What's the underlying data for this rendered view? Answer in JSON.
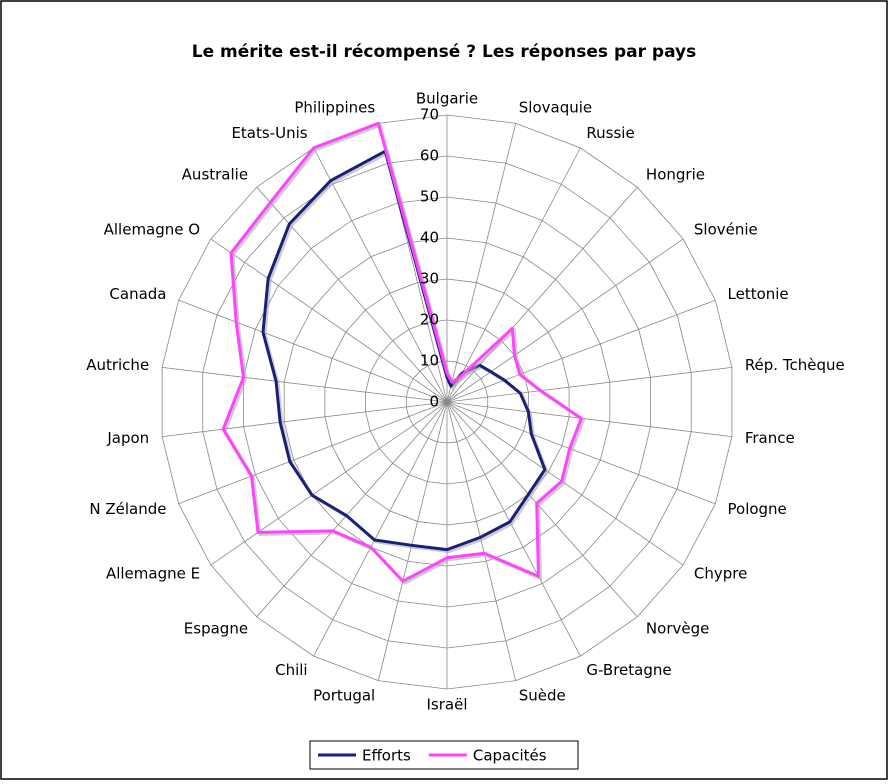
{
  "chart_data": {
    "type": "radar",
    "title": "Le mérite est-il récompensé ? Les réponses par pays",
    "categories": [
      "Bulgarie",
      "Slovaquie",
      "Russie",
      "Hongrie",
      "Slovénie",
      "Lettonie",
      "Rép. Tchèque",
      "France",
      "Pologne",
      "Chypre",
      "Norvège",
      "G-Bretagne",
      "Suède",
      "Israël",
      "Portugal",
      "Chili",
      "Espagne",
      "Allemagne E",
      "N Zélande",
      "Japon",
      "Autriche",
      "Canada",
      "Allemagne O",
      "Australie",
      "Etats-Unis",
      "Philippines"
    ],
    "series": [
      {
        "name": "Efforts",
        "color": "#1a1f7a",
        "values": [
          6,
          4,
          8,
          12,
          13,
          15,
          18,
          20,
          22,
          29,
          30,
          33,
          34,
          36,
          36,
          38,
          37,
          40,
          41,
          41,
          42,
          48,
          53,
          58,
          61,
          63
        ]
      },
      {
        "name": "Capacités",
        "color": "#ff44ff",
        "values": [
          7,
          5,
          7,
          24,
          20,
          19,
          23,
          33,
          32,
          34,
          33,
          48,
          38,
          38,
          45,
          40,
          42,
          56,
          51,
          55,
          50,
          55,
          64,
          65,
          70,
          70
        ]
      }
    ],
    "ylim": [
      0,
      70
    ],
    "yticks": [
      0,
      10,
      20,
      30,
      40,
      50,
      60,
      70
    ],
    "grid": true,
    "legend": "bottom"
  }
}
